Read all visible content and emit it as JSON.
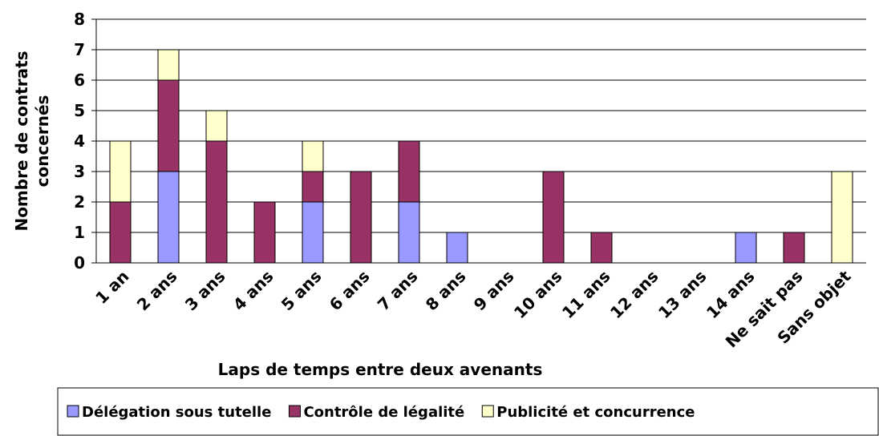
{
  "chart_data": {
    "type": "stacked-bar",
    "categories": [
      "1 an",
      "2 ans",
      "3 ans",
      "4 ans",
      "5 ans",
      "6 ans",
      "7 ans",
      "8 ans",
      "9 ans",
      "10 ans",
      "11 ans",
      "12 ans",
      "13 ans",
      "14 ans",
      "Ne sait pas",
      "Sans objet"
    ],
    "series": [
      {
        "name": "Délégation sous tutelle",
        "color": "#9999ff",
        "values": [
          0,
          3,
          0,
          0,
          2,
          0,
          2,
          1,
          0,
          0,
          0,
          0,
          0,
          1,
          0,
          0
        ]
      },
      {
        "name": "Contrôle de légalité",
        "color": "#993366",
        "values": [
          2,
          3,
          4,
          2,
          1,
          3,
          2,
          0,
          0,
          3,
          1,
          0,
          0,
          0,
          1,
          0
        ]
      },
      {
        "name": "Publicité et concurrence",
        "color": "#ffffcc",
        "values": [
          2,
          1,
          1,
          0,
          1,
          0,
          0,
          0,
          0,
          0,
          0,
          0,
          0,
          0,
          0,
          3
        ]
      }
    ],
    "xlabel": "Laps de temps entre deux avenants",
    "ylabel": [
      "Nombre de contrats",
      "concernés"
    ],
    "ylim": [
      0,
      8
    ],
    "yticks": [
      0,
      1,
      2,
      3,
      4,
      5,
      6,
      7,
      8
    ],
    "grid": true,
    "legend": "bottom"
  }
}
